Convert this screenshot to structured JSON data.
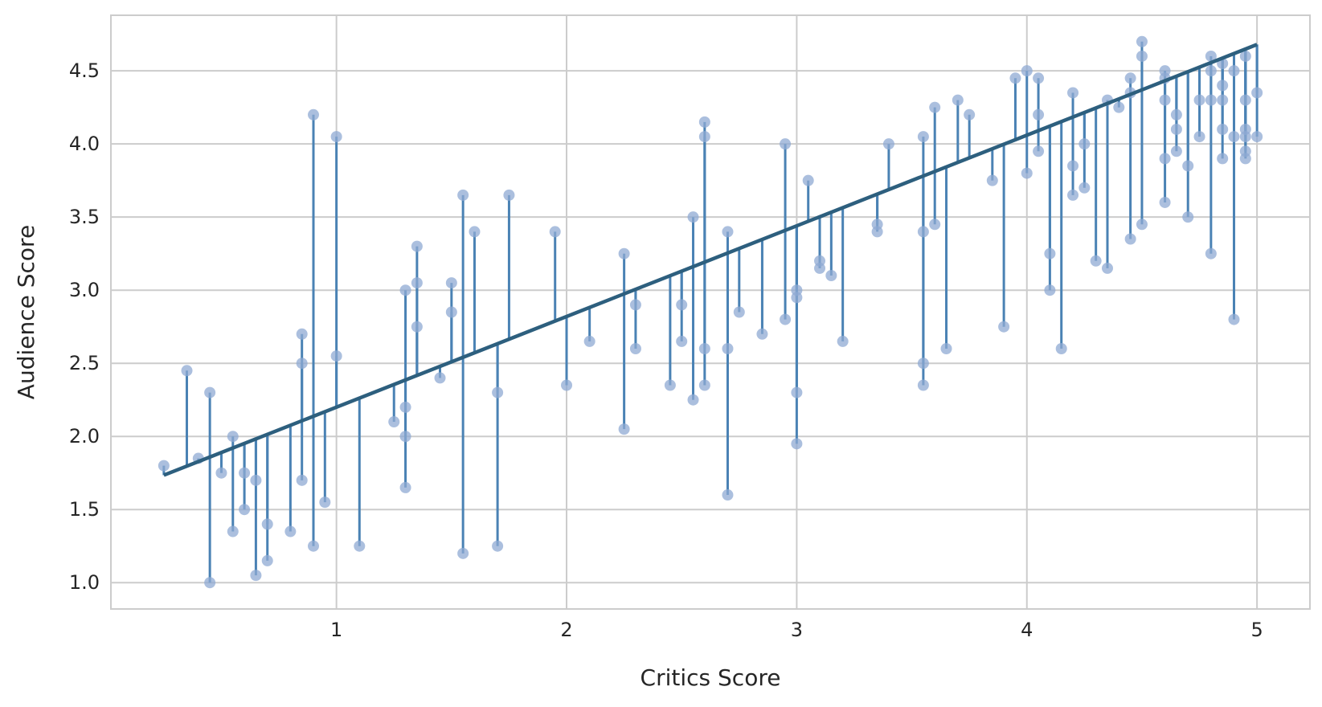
{
  "chart_data": {
    "type": "scatter",
    "title": "",
    "xlabel": "Critics Score",
    "ylabel": "Audience Score",
    "xlim": [
      0.02,
      5.23
    ],
    "ylim": [
      0.82,
      4.88
    ],
    "xticks": [
      1,
      2,
      3,
      4,
      5
    ],
    "yticks": [
      1.0,
      1.5,
      2.0,
      2.5,
      3.0,
      3.5,
      4.0,
      4.5
    ],
    "xtick_labels": [
      "1",
      "2",
      "3",
      "4",
      "5"
    ],
    "ytick_labels": [
      "1.0",
      "1.5",
      "2.0",
      "2.5",
      "3.0",
      "3.5",
      "4.0",
      "4.5"
    ],
    "grid": true,
    "legend": "none",
    "colors": {
      "points": "#8fa9d3",
      "residuals": "#4a82b4",
      "fit_line": "#2d5f7e",
      "grid": "#cccccc"
    },
    "regression": {
      "slope": 0.62,
      "intercept": 1.58,
      "x_range": [
        0.25,
        5.0
      ]
    },
    "points": [
      [
        0.25,
        1.8
      ],
      [
        0.35,
        2.45
      ],
      [
        0.4,
        1.85
      ],
      [
        0.45,
        2.3
      ],
      [
        0.45,
        1.0
      ],
      [
        0.5,
        1.75
      ],
      [
        0.55,
        2.0
      ],
      [
        0.55,
        1.35
      ],
      [
        0.6,
        1.75
      ],
      [
        0.6,
        1.5
      ],
      [
        0.65,
        1.7
      ],
      [
        0.65,
        1.05
      ],
      [
        0.7,
        1.4
      ],
      [
        0.7,
        1.15
      ],
      [
        0.8,
        1.35
      ],
      [
        0.85,
        2.7
      ],
      [
        0.85,
        2.5
      ],
      [
        0.85,
        1.7
      ],
      [
        0.9,
        4.2
      ],
      [
        0.9,
        1.25
      ],
      [
        0.95,
        1.55
      ],
      [
        1.0,
        4.05
      ],
      [
        1.0,
        2.55
      ],
      [
        1.1,
        1.25
      ],
      [
        1.25,
        2.1
      ],
      [
        1.3,
        3.0
      ],
      [
        1.3,
        2.2
      ],
      [
        1.3,
        2.0
      ],
      [
        1.3,
        1.65
      ],
      [
        1.35,
        3.3
      ],
      [
        1.35,
        3.05
      ],
      [
        1.35,
        2.75
      ],
      [
        1.45,
        2.4
      ],
      [
        1.5,
        3.05
      ],
      [
        1.5,
        2.85
      ],
      [
        1.55,
        3.65
      ],
      [
        1.55,
        1.2
      ],
      [
        1.6,
        3.4
      ],
      [
        1.7,
        2.3
      ],
      [
        1.7,
        1.25
      ],
      [
        1.75,
        3.65
      ],
      [
        1.95,
        3.4
      ],
      [
        2.0,
        2.35
      ],
      [
        2.1,
        2.65
      ],
      [
        2.25,
        3.25
      ],
      [
        2.25,
        2.05
      ],
      [
        2.3,
        2.9
      ],
      [
        2.3,
        2.6
      ],
      [
        2.45,
        2.35
      ],
      [
        2.5,
        2.9
      ],
      [
        2.5,
        2.65
      ],
      [
        2.55,
        3.5
      ],
      [
        2.55,
        2.25
      ],
      [
        2.6,
        4.15
      ],
      [
        2.6,
        4.05
      ],
      [
        2.6,
        2.6
      ],
      [
        2.6,
        2.35
      ],
      [
        2.7,
        3.4
      ],
      [
        2.7,
        2.6
      ],
      [
        2.7,
        1.6
      ],
      [
        2.75,
        2.85
      ],
      [
        2.85,
        2.7
      ],
      [
        2.95,
        4.0
      ],
      [
        2.95,
        2.8
      ],
      [
        3.0,
        3.0
      ],
      [
        3.0,
        2.95
      ],
      [
        3.0,
        2.3
      ],
      [
        3.0,
        1.95
      ],
      [
        3.05,
        3.75
      ],
      [
        3.1,
        3.2
      ],
      [
        3.1,
        3.15
      ],
      [
        3.15,
        3.1
      ],
      [
        3.2,
        2.65
      ],
      [
        3.35,
        3.45
      ],
      [
        3.35,
        3.4
      ],
      [
        3.4,
        4.0
      ],
      [
        3.55,
        4.05
      ],
      [
        3.55,
        3.4
      ],
      [
        3.55,
        2.5
      ],
      [
        3.55,
        2.35
      ],
      [
        3.6,
        4.25
      ],
      [
        3.6,
        3.45
      ],
      [
        3.65,
        2.6
      ],
      [
        3.7,
        4.3
      ],
      [
        3.75,
        4.2
      ],
      [
        3.85,
        3.75
      ],
      [
        3.9,
        2.75
      ],
      [
        3.95,
        4.45
      ],
      [
        4.0,
        4.5
      ],
      [
        4.0,
        3.8
      ],
      [
        4.05,
        4.45
      ],
      [
        4.05,
        4.2
      ],
      [
        4.05,
        3.95
      ],
      [
        4.1,
        3.25
      ],
      [
        4.1,
        3.0
      ],
      [
        4.15,
        2.6
      ],
      [
        4.2,
        4.35
      ],
      [
        4.2,
        3.85
      ],
      [
        4.2,
        3.65
      ],
      [
        4.25,
        4.0
      ],
      [
        4.25,
        3.7
      ],
      [
        4.3,
        3.2
      ],
      [
        4.35,
        4.3
      ],
      [
        4.35,
        3.15
      ],
      [
        4.4,
        4.25
      ],
      [
        4.45,
        4.45
      ],
      [
        4.45,
        4.35
      ],
      [
        4.45,
        3.35
      ],
      [
        4.5,
        4.7
      ],
      [
        4.5,
        4.6
      ],
      [
        4.5,
        3.45
      ],
      [
        4.6,
        4.5
      ],
      [
        4.6,
        4.45
      ],
      [
        4.6,
        4.3
      ],
      [
        4.6,
        3.9
      ],
      [
        4.6,
        3.6
      ],
      [
        4.65,
        4.2
      ],
      [
        4.65,
        4.1
      ],
      [
        4.65,
        3.95
      ],
      [
        4.7,
        3.85
      ],
      [
        4.7,
        3.5
      ],
      [
        4.75,
        4.3
      ],
      [
        4.75,
        4.05
      ],
      [
        4.8,
        4.6
      ],
      [
        4.8,
        4.5
      ],
      [
        4.8,
        4.3
      ],
      [
        4.8,
        3.25
      ],
      [
        4.85,
        4.55
      ],
      [
        4.85,
        4.4
      ],
      [
        4.85,
        4.3
      ],
      [
        4.85,
        4.1
      ],
      [
        4.85,
        3.9
      ],
      [
        4.9,
        4.5
      ],
      [
        4.9,
        4.05
      ],
      [
        4.9,
        2.8
      ],
      [
        4.95,
        4.6
      ],
      [
        4.95,
        4.3
      ],
      [
        4.95,
        4.1
      ],
      [
        4.95,
        4.05
      ],
      [
        4.95,
        3.95
      ],
      [
        4.95,
        3.9
      ],
      [
        5.0,
        4.35
      ],
      [
        5.0,
        4.05
      ]
    ]
  }
}
